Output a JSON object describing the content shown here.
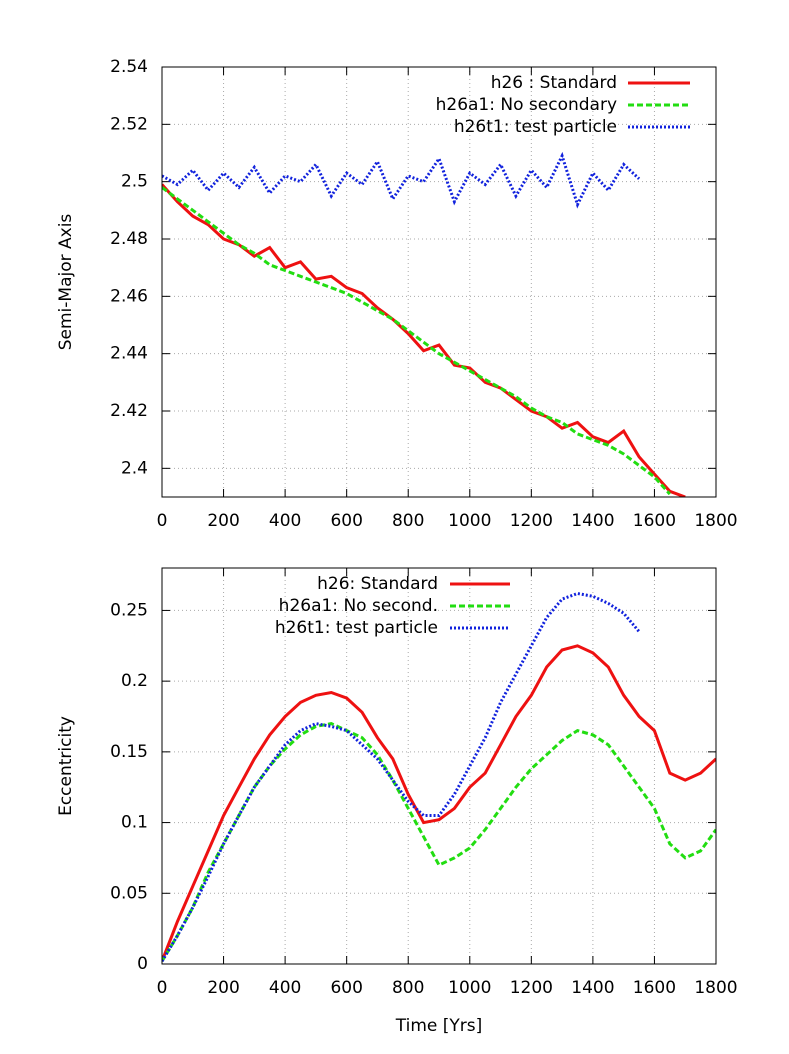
{
  "chart_data": [
    {
      "type": "line",
      "ylabel": "Semi-Major Axis",
      "xlim": [
        0,
        1800
      ],
      "xticks": [
        0,
        200,
        400,
        600,
        800,
        1000,
        1200,
        1400,
        1600,
        1800
      ],
      "ylim": [
        2.39,
        2.54
      ],
      "yticks": [
        2.4,
        2.42,
        2.44,
        2.46,
        2.48,
        2.5,
        2.52,
        2.54
      ],
      "grid": true,
      "legend": "top-right",
      "series": [
        {
          "name": "h26 : Standard",
          "color": "#ee1111",
          "dash": "solid",
          "x": [
            0,
            50,
            100,
            150,
            200,
            250,
            300,
            350,
            400,
            450,
            500,
            550,
            600,
            650,
            700,
            750,
            800,
            850,
            900,
            950,
            1000,
            1050,
            1100,
            1150,
            1200,
            1250,
            1300,
            1350,
            1400,
            1450,
            1500,
            1550,
            1600,
            1650,
            1700
          ],
          "values": [
            2.499,
            2.493,
            2.488,
            2.485,
            2.48,
            2.478,
            2.474,
            2.477,
            2.47,
            2.472,
            2.466,
            2.467,
            2.463,
            2.461,
            2.456,
            2.452,
            2.447,
            2.441,
            2.443,
            2.436,
            2.435,
            2.43,
            2.428,
            2.424,
            2.42,
            2.418,
            2.414,
            2.416,
            2.411,
            2.409,
            2.413,
            2.404,
            2.398,
            2.392,
            2.39
          ]
        },
        {
          "name": "h26a1: No secondary",
          "color": "#22dd11",
          "dash": "dashed",
          "x": [
            0,
            50,
            100,
            150,
            200,
            250,
            300,
            350,
            400,
            450,
            500,
            550,
            600,
            650,
            700,
            750,
            800,
            850,
            900,
            950,
            1000,
            1050,
            1100,
            1150,
            1200,
            1250,
            1300,
            1350,
            1400,
            1450,
            1500,
            1550,
            1600,
            1650
          ],
          "values": [
            2.498,
            2.494,
            2.49,
            2.486,
            2.482,
            2.478,
            2.475,
            2.471,
            2.469,
            2.467,
            2.465,
            2.463,
            2.461,
            2.458,
            2.455,
            2.452,
            2.448,
            2.444,
            2.44,
            2.437,
            2.434,
            2.431,
            2.428,
            2.425,
            2.421,
            2.418,
            2.416,
            2.412,
            2.41,
            2.408,
            2.405,
            2.401,
            2.397,
            2.391
          ]
        },
        {
          "name": "h26t1: test particle",
          "color": "#1122dd",
          "dash": "dotted",
          "x": [
            0,
            50,
            100,
            150,
            200,
            250,
            300,
            350,
            400,
            450,
            500,
            550,
            600,
            650,
            700,
            750,
            800,
            850,
            900,
            950,
            1000,
            1050,
            1100,
            1150,
            1200,
            1250,
            1300,
            1350,
            1400,
            1450,
            1500,
            1550
          ],
          "values": [
            2.502,
            2.499,
            2.504,
            2.497,
            2.503,
            2.498,
            2.505,
            2.496,
            2.502,
            2.5,
            2.506,
            2.495,
            2.503,
            2.499,
            2.507,
            2.494,
            2.502,
            2.5,
            2.508,
            2.493,
            2.503,
            2.499,
            2.506,
            2.495,
            2.504,
            2.498,
            2.509,
            2.492,
            2.503,
            2.497,
            2.506,
            2.501
          ]
        }
      ]
    },
    {
      "type": "line",
      "xlabel": "Time [Yrs]",
      "ylabel": "Eccentricity",
      "xlim": [
        0,
        1800
      ],
      "xticks": [
        0,
        200,
        400,
        600,
        800,
        1000,
        1200,
        1400,
        1600,
        1800
      ],
      "ylim": [
        0,
        0.28
      ],
      "yticks": [
        0,
        0.05,
        0.1,
        0.15,
        0.2,
        0.25
      ],
      "grid": true,
      "legend": "top-center",
      "series": [
        {
          "name": "h26: Standard",
          "color": "#ee1111",
          "dash": "solid",
          "x": [
            0,
            50,
            100,
            150,
            200,
            250,
            300,
            350,
            400,
            450,
            500,
            550,
            600,
            650,
            700,
            750,
            800,
            850,
            900,
            950,
            1000,
            1050,
            1100,
            1150,
            1200,
            1250,
            1300,
            1350,
            1400,
            1450,
            1500,
            1550,
            1600,
            1650,
            1700,
            1750,
            1800
          ],
          "values": [
            0.002,
            0.03,
            0.055,
            0.08,
            0.105,
            0.125,
            0.145,
            0.162,
            0.175,
            0.185,
            0.19,
            0.192,
            0.188,
            0.178,
            0.16,
            0.145,
            0.12,
            0.1,
            0.102,
            0.11,
            0.125,
            0.135,
            0.155,
            0.175,
            0.19,
            0.21,
            0.222,
            0.225,
            0.22,
            0.21,
            0.19,
            0.175,
            0.165,
            0.135,
            0.13,
            0.135,
            0.145
          ]
        },
        {
          "name": "h26a1: No second.",
          "color": "#22dd11",
          "dash": "dashed",
          "x": [
            0,
            50,
            100,
            150,
            200,
            250,
            300,
            350,
            400,
            450,
            500,
            550,
            600,
            650,
            700,
            750,
            800,
            850,
            900,
            950,
            1000,
            1050,
            1100,
            1150,
            1200,
            1250,
            1300,
            1350,
            1400,
            1450,
            1500,
            1550,
            1600,
            1650,
            1700,
            1750,
            1800
          ],
          "values": [
            0.002,
            0.02,
            0.04,
            0.065,
            0.085,
            0.105,
            0.125,
            0.14,
            0.152,
            0.162,
            0.168,
            0.17,
            0.165,
            0.16,
            0.148,
            0.13,
            0.11,
            0.09,
            0.07,
            0.075,
            0.082,
            0.095,
            0.11,
            0.125,
            0.138,
            0.148,
            0.158,
            0.165,
            0.162,
            0.155,
            0.14,
            0.125,
            0.11,
            0.085,
            0.075,
            0.08,
            0.095
          ]
        },
        {
          "name": "h26t1: test particle",
          "color": "#1122dd",
          "dash": "dotted",
          "x": [
            0,
            50,
            100,
            150,
            200,
            250,
            300,
            350,
            400,
            450,
            500,
            550,
            600,
            650,
            700,
            750,
            800,
            850,
            900,
            950,
            1000,
            1050,
            1100,
            1150,
            1200,
            1250,
            1300,
            1350,
            1400,
            1450,
            1500,
            1550
          ],
          "values": [
            0.002,
            0.02,
            0.04,
            0.062,
            0.085,
            0.105,
            0.125,
            0.14,
            0.155,
            0.165,
            0.17,
            0.168,
            0.165,
            0.155,
            0.145,
            0.13,
            0.115,
            0.105,
            0.105,
            0.12,
            0.14,
            0.16,
            0.185,
            0.205,
            0.225,
            0.245,
            0.258,
            0.262,
            0.26,
            0.255,
            0.248,
            0.235
          ]
        }
      ]
    }
  ]
}
